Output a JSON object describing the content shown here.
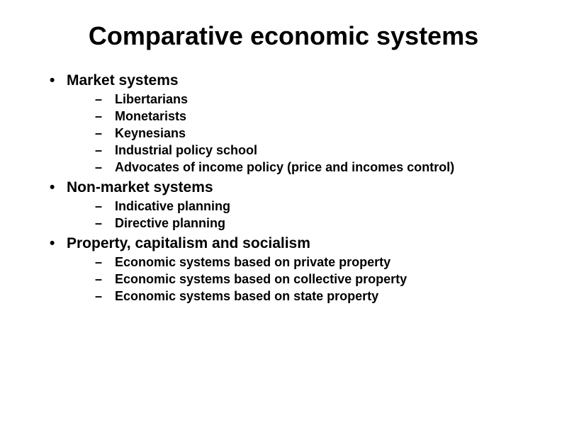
{
  "slide": {
    "title": "Comparative economic systems",
    "title_fontsize": 36,
    "title_weight": "bold",
    "background_color": "#ffffff",
    "text_color": "#000000",
    "font_family": "Arial",
    "bullets": [
      {
        "text": "Market systems",
        "children": [
          {
            "text": "Libertarians"
          },
          {
            "text": "Monetarists"
          },
          {
            "text": "Keynesians"
          },
          {
            "text": "Industrial policy school"
          },
          {
            "text": "Advocates of income policy (price and incomes control)"
          }
        ]
      },
      {
        "text": "Non-market systems",
        "children": [
          {
            "text": "Indicative planning"
          },
          {
            "text": "Directive planning"
          }
        ]
      },
      {
        "text": "Property, capitalism and socialism",
        "children": [
          {
            "text": "Economic systems based on private property"
          },
          {
            "text": "Economic systems based on collective property"
          },
          {
            "text": "Economic systems based on state property"
          }
        ]
      }
    ],
    "level1_fontsize": 21,
    "level2_fontsize": 18,
    "level1_bullet": "•",
    "level2_bullet": "–"
  }
}
